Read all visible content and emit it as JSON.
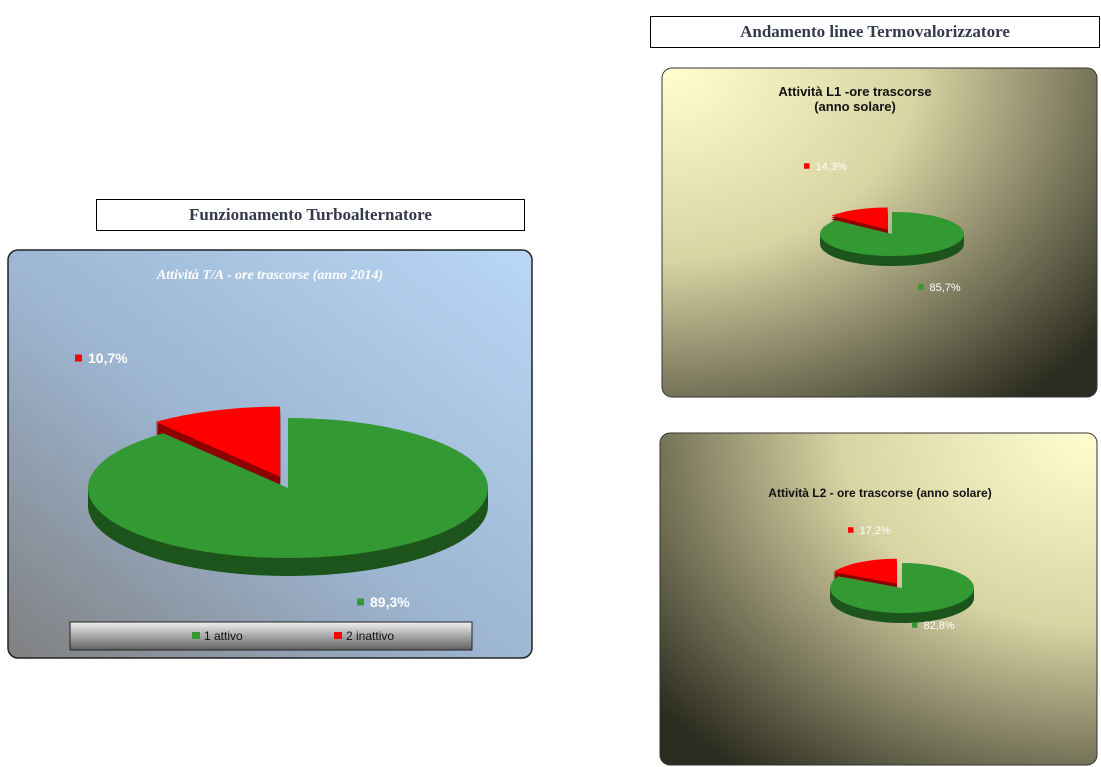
{
  "headings": [
    "Funzionamento Turboalternatore",
    "Andamento linee Termovalorizzatore"
  ],
  "chart_data": [
    {
      "type": "pie",
      "title": "Attività T/A - ore trascorse (anno 2014)",
      "categories": [
        "1 attivo",
        "2 inattivo"
      ],
      "values": [
        89.3,
        10.7
      ],
      "value_labels": [
        "89,3%",
        "10,7%"
      ],
      "colors": [
        "#339933",
        "#ff0000"
      ],
      "legend": "bottom"
    },
    {
      "type": "pie",
      "title": "Attività L1 -ore trascorse (anno solare)",
      "values": [
        85.7,
        14.3
      ],
      "value_labels": [
        "85,7%",
        "14,3%"
      ],
      "colors": [
        "#339933",
        "#ff0000"
      ]
    },
    {
      "type": "pie",
      "title": "Attività L2 - ore trascorse (anno solare)",
      "values": [
        82.8,
        17.2
      ],
      "value_labels": [
        "82,8%",
        "17,2%"
      ],
      "colors": [
        "#339933",
        "#ff0000"
      ]
    }
  ]
}
